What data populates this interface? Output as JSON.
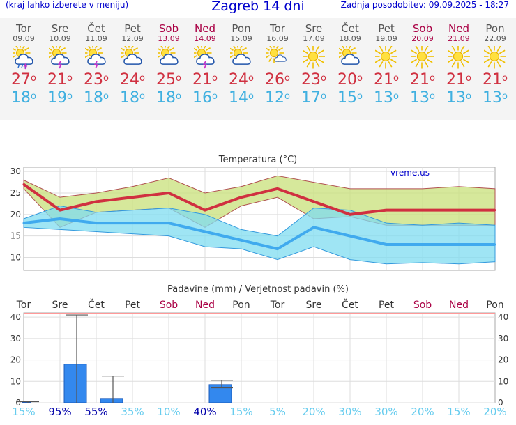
{
  "header": {
    "note": "(kraj lahko izberete v meniju)",
    "title": "Zagreb 14 dni",
    "updated": "Zadnja posodobitev: 09.09.2025 - 18:27"
  },
  "days": [
    {
      "name": "Tor",
      "date": "09.09",
      "weekend": false,
      "icon": "sun-cloud-rain-thunder-icon",
      "max": "27",
      "min": "18"
    },
    {
      "name": "Sre",
      "date": "10.09",
      "weekend": false,
      "icon": "sun-cloud-thunder-icon",
      "max": "21",
      "min": "19"
    },
    {
      "name": "Čet",
      "date": "11.09",
      "weekend": false,
      "icon": "sun-cloud-thunder-icon",
      "max": "23",
      "min": "18"
    },
    {
      "name": "Pet",
      "date": "12.09",
      "weekend": false,
      "icon": "partly-cloudy-icon",
      "max": "24",
      "min": "18"
    },
    {
      "name": "Sob",
      "date": "13.09",
      "weekend": true,
      "icon": "partly-cloudy-icon",
      "max": "25",
      "min": "18"
    },
    {
      "name": "Ned",
      "date": "14.09",
      "weekend": true,
      "icon": "sun-cloud-thunder-icon",
      "max": "21",
      "min": "16"
    },
    {
      "name": "Pon",
      "date": "15.09",
      "weekend": false,
      "icon": "partly-cloudy-icon",
      "max": "24",
      "min": "14"
    },
    {
      "name": "Tor",
      "date": "16.09",
      "weekend": false,
      "icon": "sun-small-cloud-icon",
      "max": "26",
      "min": "12"
    },
    {
      "name": "Sre",
      "date": "17.09",
      "weekend": false,
      "icon": "sun-icon",
      "max": "23",
      "min": "17"
    },
    {
      "name": "Čet",
      "date": "18.09",
      "weekend": false,
      "icon": "partly-cloudy-icon",
      "max": "20",
      "min": "15"
    },
    {
      "name": "Pet",
      "date": "19.09",
      "weekend": false,
      "icon": "sun-icon",
      "max": "21",
      "min": "13"
    },
    {
      "name": "Sob",
      "date": "20.09",
      "weekend": true,
      "icon": "sun-icon",
      "max": "21",
      "min": "13"
    },
    {
      "name": "Ned",
      "date": "21.09",
      "weekend": true,
      "icon": "sun-icon",
      "max": "21",
      "min": "13"
    },
    {
      "name": "Pon",
      "date": "22.09",
      "weekend": false,
      "icon": "sun-icon",
      "max": "21",
      "min": "13"
    }
  ],
  "colors": {
    "max_line": "#d03040",
    "min_line": "#40aaee",
    "max_band": "#c8e07a",
    "min_band": "#7fdcf0",
    "precip_bar": "#3388ee",
    "weekend": "#aa0044",
    "prob_high": "#0000aa",
    "prob_low": "#66ccee"
  },
  "chart_data": [
    {
      "type": "line",
      "title": "Temperatura (°C)",
      "watermark": "vreme.us",
      "ylim": [
        7,
        31
      ],
      "yticks": [
        "10",
        "15",
        "20",
        "25",
        "30"
      ],
      "series": [
        {
          "values": [
            27,
            21,
            23,
            24,
            25,
            21,
            24,
            26,
            23,
            20,
            21,
            21,
            21,
            21
          ]
        },
        {
          "values": [
            18,
            19,
            18,
            18,
            18,
            16,
            14,
            12,
            17,
            15,
            13,
            13,
            13,
            13
          ]
        }
      ],
      "max_band_upper": [
        28,
        24,
        25,
        26.5,
        28.5,
        25,
        26.5,
        29,
        27.5,
        26,
        26,
        26,
        26.5,
        26
      ],
      "max_band_lower": [
        26,
        17,
        20.5,
        21,
        21.5,
        17,
        22,
        24,
        19,
        19.5,
        17.5,
        17.5,
        17.5,
        17.5
      ],
      "min_band_upper": [
        19,
        22,
        20.5,
        21,
        21.5,
        20,
        16.5,
        15,
        21.5,
        21,
        18,
        17.5,
        18,
        17.5
      ],
      "min_band_lower": [
        17,
        16.5,
        16,
        15.5,
        15,
        12.5,
        12,
        9.5,
        12.5,
        9.5,
        8.5,
        8.8,
        8.5,
        9
      ]
    },
    {
      "type": "bar",
      "title": "Padavine (mm) / Verjetnost padavin (%)",
      "categories": [
        "Tor",
        "Sre",
        "Čet",
        "Pet",
        "Sob",
        "Ned",
        "Pon",
        "Tor",
        "Sre",
        "Čet",
        "Pet",
        "Sob",
        "Ned",
        "Pon"
      ],
      "weekend": [
        false,
        false,
        false,
        false,
        true,
        true,
        false,
        false,
        false,
        false,
        false,
        true,
        true,
        false
      ],
      "values": [
        0.3,
        18,
        2,
        0,
        0,
        8.5,
        0,
        0,
        0,
        0,
        0,
        0,
        0,
        0
      ],
      "error_max": [
        0.5,
        41,
        12.5,
        0,
        0,
        10.5,
        0,
        0,
        0,
        0,
        0,
        0,
        0,
        0
      ],
      "error_min": [
        0,
        0,
        0,
        0,
        0,
        7,
        0,
        0,
        0,
        0,
        0,
        0,
        0,
        0
      ],
      "ylim": [
        0,
        42
      ],
      "yticks": [
        "0",
        "10",
        "20",
        "30",
        "40"
      ],
      "probabilities": [
        "15%",
        "95%",
        "55%",
        "35%",
        "10%",
        "40%",
        "15%",
        "5%",
        "20%",
        "30%",
        "30%",
        "20%",
        "15%",
        "20%"
      ],
      "probability_high": [
        false,
        true,
        true,
        false,
        false,
        true,
        false,
        false,
        false,
        false,
        false,
        false,
        false,
        false
      ]
    }
  ]
}
